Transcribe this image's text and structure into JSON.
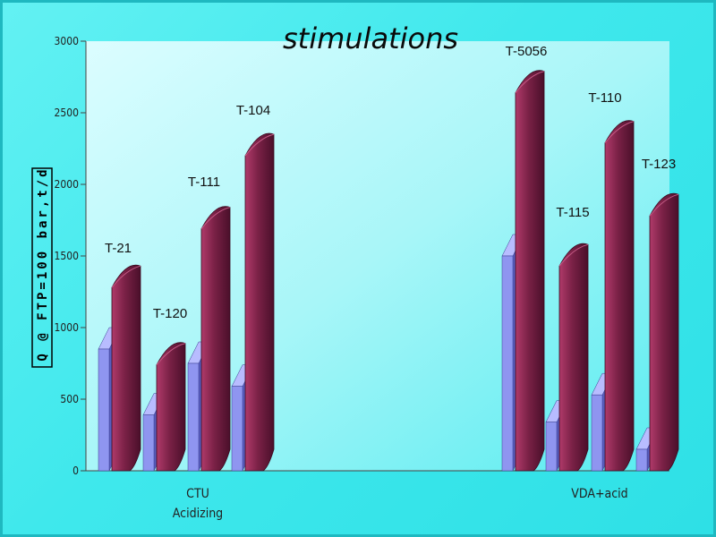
{
  "chart_data": {
    "type": "bar",
    "title": "stimulations",
    "ylabel": "Q @ FTP=100 bar,t/d",
    "ylim": [
      0,
      3000
    ],
    "yticks": [
      0,
      500,
      1000,
      1500,
      2000,
      2500,
      3000
    ],
    "grid": false,
    "groups": [
      {
        "label_lines": [
          "CTU",
          "Acidizing"
        ],
        "wells": [
          "T-21",
          "T-120",
          "T-111",
          "T-104"
        ]
      },
      {
        "label_lines": [
          "VDA+acid"
        ],
        "wells": [
          "T-5056",
          "T-115",
          "T-110",
          "T-123"
        ]
      }
    ],
    "series": [
      {
        "values": [
          850,
          390,
          750,
          590,
          1500,
          340,
          530,
          150
        ],
        "color": "#8f95f0"
      },
      {
        "values": [
          1280,
          740,
          1690,
          2200,
          2640,
          1430,
          2290,
          1780
        ],
        "color": "#7a2146"
      }
    ]
  }
}
